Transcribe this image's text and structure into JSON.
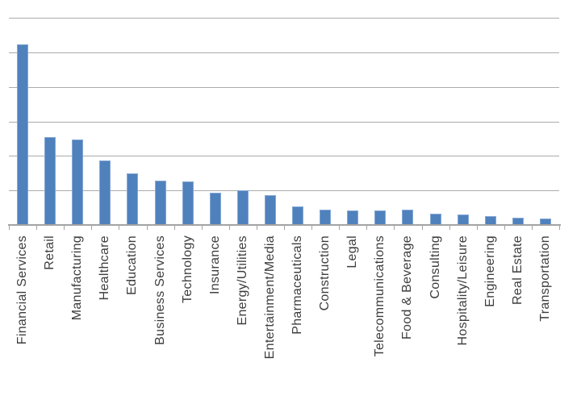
{
  "chart_data": {
    "type": "bar",
    "title": "",
    "xlabel": "",
    "ylabel": "",
    "categories": [
      "Financial Services",
      "Retail",
      "Manufacturing",
      "Healthcare",
      "Education",
      "Business Services",
      "Technology",
      "Insurance",
      "Energy/Utilities",
      "Entertainment/Media",
      "Pharmaceuticals",
      "Construction",
      "Legal",
      "Telecommunications",
      "Food & Beverage",
      "Consulting",
      "Hospitality/Leisure",
      "Engineering",
      "Real Estate",
      "Transportation"
    ],
    "values": [
      5.23,
      2.55,
      2.47,
      1.86,
      1.5,
      1.29,
      1.25,
      0.93,
      1.01,
      0.87,
      0.53,
      0.44,
      0.43,
      0.43,
      0.44,
      0.33,
      0.3,
      0.26,
      0.22,
      0.19
    ],
    "value_units": "gridline-units (y-axis tick labels not visible in image; 1 unit = one gridline interval)",
    "ylim": [
      0,
      6
    ],
    "gridlines": {
      "horizontal": true,
      "count": 6,
      "labels_visible": false
    },
    "legend_position": "none",
    "x_label_rotation_degrees": 90,
    "colors": {
      "bar_fill": "#4f81bd",
      "bar_border": "#84a8d4",
      "gridline": "#ababab",
      "axis_line": "#a3a3a3",
      "label_text": "#3d3d3d",
      "background": "#ffffff"
    }
  }
}
